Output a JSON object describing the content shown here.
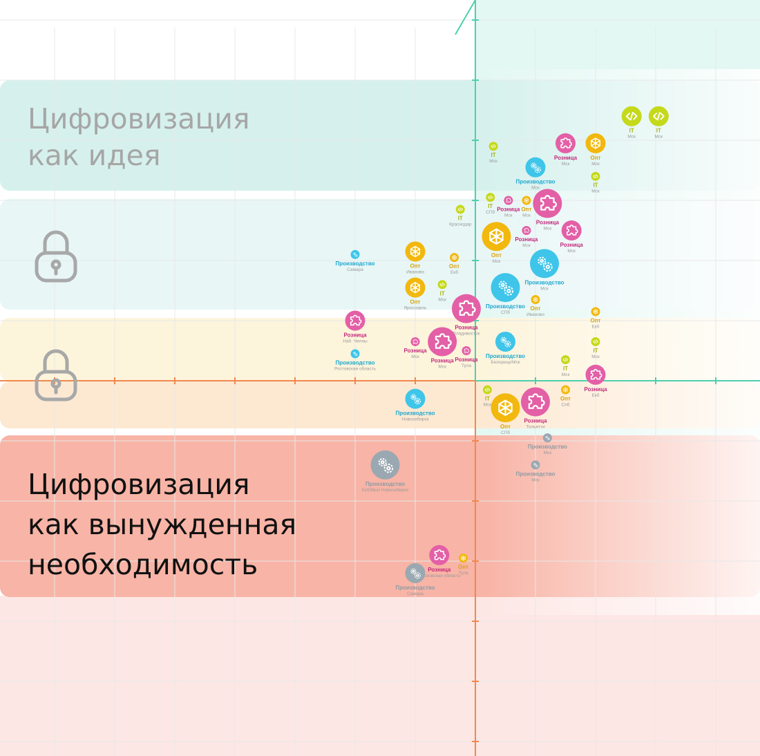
{
  "bands": {
    "top_title": "Цифровизация\nкак идея",
    "bottom_title": "Цифровизация\nкак вынужденная\nнеобходимость"
  },
  "colors": {
    "band_idea": "#d6f1ed",
    "band_lock1": "#e8f6f6",
    "band_lock2": "#fdf4dc",
    "band_orange": "#fde9d2",
    "band_forced": "#f8b4a6",
    "band_bottom": "#fde7e5",
    "quadrant": "#e4f8f3",
    "axis_teal": "#4ccfae",
    "axis_orange": "#f0874c",
    "grid": "#e8e8e8",
    "lock": "#a8a8a8",
    "IT": "#c5d91b",
    "Опт": "#f2b80d",
    "Розница": "#e35fa6",
    "Производство": "#3ec5e9",
    "Производство_gray": "#9aa8b1"
  },
  "icons": {
    "IT": "code-icon",
    "Опт": "network-icon",
    "Розница": "puzzle-icon",
    "Производство": "gears-icon",
    "lock": "lock-icon"
  },
  "chart_data": {
    "type": "scatter",
    "title": "",
    "xlabel": "",
    "ylabel": "",
    "xlim": [
      -8,
      4.8
    ],
    "ylim": [
      -6,
      6.1
    ],
    "grid": true,
    "points": [
      {
        "x": 2.6,
        "y": 4.4,
        "size": "m",
        "industry": "IT",
        "label": "IT",
        "sub": "Мск"
      },
      {
        "x": 3.05,
        "y": 4.4,
        "size": "m",
        "industry": "IT",
        "label": "IT",
        "sub": "Мск"
      },
      {
        "x": 0.3,
        "y": 3.9,
        "size": "s",
        "industry": "IT",
        "label": "IT",
        "sub": "Мск"
      },
      {
        "x": 1.5,
        "y": 3.95,
        "size": "m",
        "industry": "Розница",
        "label": "Розница",
        "sub": "Мск"
      },
      {
        "x": 2.0,
        "y": 3.95,
        "size": "m",
        "industry": "Опт",
        "label": "Опт",
        "sub": "Мск"
      },
      {
        "x": 1.0,
        "y": 3.55,
        "size": "m",
        "industry": "Производство",
        "label": "Производство",
        "sub": "Мск"
      },
      {
        "x": 2.0,
        "y": 3.4,
        "size": "s",
        "industry": "IT",
        "label": "IT",
        "sub": "Мск"
      },
      {
        "x": 0.25,
        "y": 3.05,
        "size": "s",
        "industry": "IT",
        "label": "IT",
        "sub": "СПб"
      },
      {
        "x": -0.25,
        "y": 2.85,
        "size": "s",
        "industry": "IT",
        "label": "IT",
        "sub": "Краснодар"
      },
      {
        "x": 0.55,
        "y": 3.0,
        "size": "s",
        "industry": "Розница",
        "label": "Розница",
        "sub": "Мск"
      },
      {
        "x": 0.85,
        "y": 3.0,
        "size": "s",
        "industry": "Опт",
        "label": "Опт",
        "sub": "Мск"
      },
      {
        "x": 1.2,
        "y": 2.95,
        "size": "l",
        "industry": "Розница",
        "label": "Розница",
        "sub": "Мск"
      },
      {
        "x": 1.6,
        "y": 2.5,
        "size": "m",
        "industry": "Розница",
        "label": "Розница",
        "sub": "Мск"
      },
      {
        "x": 0.35,
        "y": 2.4,
        "size": "l",
        "industry": "Опт",
        "label": "Опт",
        "sub": "Мск"
      },
      {
        "x": 0.85,
        "y": 2.5,
        "size": "s",
        "industry": "Розница",
        "label": "Розница",
        "sub": "Мск"
      },
      {
        "x": 1.15,
        "y": 1.95,
        "size": "l",
        "industry": "Производство",
        "label": "Производство",
        "sub": "Мск"
      },
      {
        "x": -0.35,
        "y": 2.05,
        "size": "s",
        "industry": "Опт",
        "label": "Опт",
        "sub": "Екб"
      },
      {
        "x": -1.0,
        "y": 2.15,
        "size": "m",
        "industry": "Опт",
        "label": "Опт",
        "sub": "Иваново"
      },
      {
        "x": -2.0,
        "y": 2.1,
        "size": "s",
        "industry": "Производство",
        "label": "Производство",
        "sub": "Самара"
      },
      {
        "x": -0.55,
        "y": 1.6,
        "size": "s",
        "industry": "IT",
        "label": "IT",
        "sub": "Мск"
      },
      {
        "x": -1.0,
        "y": 1.55,
        "size": "m",
        "industry": "Опт",
        "label": "Опт",
        "sub": "Ярославль"
      },
      {
        "x": 0.5,
        "y": 1.55,
        "size": "l",
        "industry": "Производство",
        "label": "Производство",
        "sub": "СПб"
      },
      {
        "x": 1.0,
        "y": 1.35,
        "size": "s",
        "industry": "Опт",
        "label": "Опт",
        "sub": "Иваново"
      },
      {
        "x": 2.0,
        "y": 1.15,
        "size": "s",
        "industry": "Опт",
        "label": "Опт",
        "sub": "Екб"
      },
      {
        "x": -0.15,
        "y": 1.2,
        "size": "l",
        "industry": "Розница",
        "label": "Розница",
        "sub": "Владивосток"
      },
      {
        "x": -2.0,
        "y": 1.0,
        "size": "m",
        "industry": "Розница",
        "label": "Розница",
        "sub": "Наб. Челны"
      },
      {
        "x": -1.0,
        "y": 0.65,
        "size": "s",
        "industry": "Розница",
        "label": "Розница",
        "sub": "Мск"
      },
      {
        "x": -0.55,
        "y": 0.65,
        "size": "l",
        "industry": "Розница",
        "label": "Розница",
        "sub": "Мск"
      },
      {
        "x": -0.15,
        "y": 0.5,
        "size": "s",
        "industry": "Розница",
        "label": "Розница",
        "sub": "Тула"
      },
      {
        "x": 0.5,
        "y": 0.65,
        "size": "m",
        "industry": "Производство",
        "label": "Производство",
        "sub": "Белорецк/Мск"
      },
      {
        "x": 2.0,
        "y": 0.65,
        "size": "s",
        "industry": "IT",
        "label": "IT",
        "sub": "Мск"
      },
      {
        "x": -2.0,
        "y": 0.45,
        "size": "s",
        "industry": "Производство",
        "label": "Производство",
        "sub": "Ростовская область"
      },
      {
        "x": 1.5,
        "y": 0.35,
        "size": "s",
        "industry": "IT",
        "label": "IT",
        "sub": "Мск"
      },
      {
        "x": 2.0,
        "y": 0.1,
        "size": "m",
        "industry": "Розница",
        "label": "Розница",
        "sub": "Екб"
      },
      {
        "x": 0.2,
        "y": -0.15,
        "size": "s",
        "industry": "IT",
        "label": "IT",
        "sub": "Мск"
      },
      {
        "x": 1.5,
        "y": -0.15,
        "size": "s",
        "industry": "Опт",
        "label": "Опт",
        "sub": "Спб"
      },
      {
        "x": 1.0,
        "y": -0.35,
        "size": "l",
        "industry": "Розница",
        "label": "Розница",
        "sub": "Тольятти"
      },
      {
        "x": 0.5,
        "y": -0.45,
        "size": "l",
        "industry": "Опт",
        "label": "Опт",
        "sub": "СПб"
      },
      {
        "x": -1.0,
        "y": -0.3,
        "size": "m",
        "industry": "Производство",
        "label": "Производство",
        "sub": "Новосибирск"
      },
      {
        "x": 1.2,
        "y": -0.95,
        "size": "s",
        "industry": "Производство",
        "label": "Производство",
        "sub": "Мск",
        "muted": true
      },
      {
        "x": 1.0,
        "y": -1.4,
        "size": "s",
        "industry": "Производство",
        "label": "Производство",
        "sub": "Мск",
        "muted": true
      },
      {
        "x": -1.5,
        "y": -1.4,
        "size": "l",
        "industry": "Производство",
        "label": "Производство",
        "sub": "Екб/Мск/ Новосибирск",
        "muted": true
      },
      {
        "x": -0.6,
        "y": -2.9,
        "size": "m",
        "industry": "Розница",
        "label": "Розница",
        "sub": "Московская область"
      },
      {
        "x": -0.2,
        "y": -2.95,
        "size": "s",
        "industry": "Опт",
        "label": "Опт",
        "sub": "Тула"
      },
      {
        "x": -1.0,
        "y": -3.2,
        "size": "m",
        "industry": "Производство",
        "label": "Производство",
        "sub": "Самара",
        "muted": true
      }
    ]
  }
}
